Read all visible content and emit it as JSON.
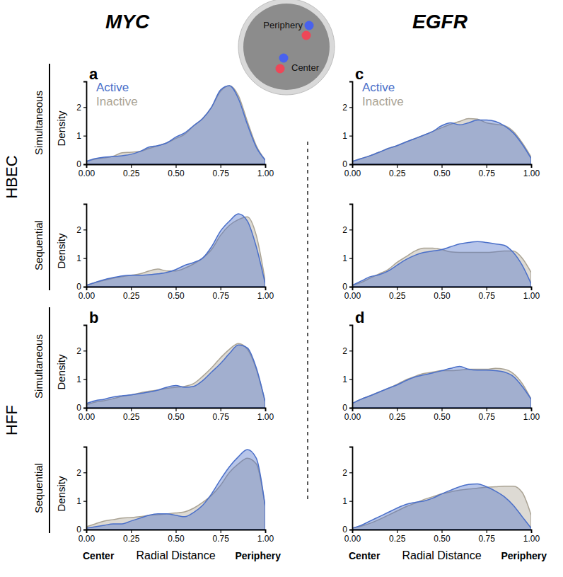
{
  "figure": {
    "columns": [
      "MYC",
      "EGFR"
    ],
    "groups": [
      "HBEC",
      "HFF"
    ],
    "diagram_labels": [
      "Periphery",
      "Center"
    ]
  },
  "chart_data": [
    {
      "type": "area",
      "panel": "a",
      "row_label": "Simultaneous",
      "ylabel": "Density",
      "legend": "upper left",
      "x": [
        0,
        0.05,
        0.1,
        0.15,
        0.2,
        0.25,
        0.3,
        0.35,
        0.4,
        0.45,
        0.5,
        0.55,
        0.6,
        0.65,
        0.7,
        0.75,
        0.8,
        0.85,
        0.9,
        0.95,
        1
      ],
      "xlim": [
        0,
        1
      ],
      "xticks": [
        {
          "value": 0,
          "label": "0.00"
        },
        0.25,
        {
          "value": 0.5,
          "label": "0.50"
        },
        0.75,
        {
          "value": 1,
          "label": "1.00"
        }
      ],
      "ylim": [
        0,
        2.9
      ],
      "yticks": [
        0,
        1,
        2
      ],
      "series": [
        {
          "name": "Active",
          "color": "#4a6fc9",
          "values": [
            0.1,
            0.2,
            0.25,
            0.27,
            0.3,
            0.35,
            0.45,
            0.6,
            0.65,
            0.75,
            0.95,
            1.1,
            1.35,
            1.6,
            2.0,
            2.6,
            2.75,
            2.3,
            1.4,
            0.6,
            0.15
          ]
        },
        {
          "name": "Inactive",
          "color": "#aaa394",
          "values": [
            0.1,
            0.18,
            0.22,
            0.28,
            0.4,
            0.42,
            0.45,
            0.55,
            0.65,
            0.75,
            0.9,
            1.05,
            1.35,
            1.6,
            2.0,
            2.55,
            2.75,
            2.4,
            1.5,
            0.65,
            0.15
          ]
        }
      ]
    },
    {
      "type": "area",
      "row_label": "Sequential",
      "ylabel": "Density",
      "x": [
        0,
        0.05,
        0.1,
        0.15,
        0.2,
        0.25,
        0.3,
        0.35,
        0.4,
        0.45,
        0.5,
        0.55,
        0.6,
        0.65,
        0.7,
        0.75,
        0.8,
        0.85,
        0.9,
        0.95,
        1
      ],
      "xlim": [
        0,
        1
      ],
      "xticks": [
        {
          "value": 0,
          "label": "0.00"
        },
        0.25,
        {
          "value": 0.5,
          "label": "0.50"
        },
        0.75,
        {
          "value": 1,
          "label": "1.00"
        }
      ],
      "ylim": [
        0,
        2.9
      ],
      "yticks": [
        0,
        1,
        2
      ],
      "series": [
        {
          "name": "Active",
          "color": "#4a6fc9",
          "values": [
            0.05,
            0.15,
            0.25,
            0.32,
            0.38,
            0.4,
            0.4,
            0.42,
            0.45,
            0.5,
            0.6,
            0.75,
            0.85,
            1.0,
            1.4,
            1.95,
            2.3,
            2.55,
            2.3,
            1.4,
            0.1
          ]
        },
        {
          "name": "Inactive",
          "color": "#aaa394",
          "values": [
            0.05,
            0.15,
            0.22,
            0.3,
            0.35,
            0.4,
            0.45,
            0.55,
            0.62,
            0.55,
            0.55,
            0.65,
            0.8,
            1.0,
            1.3,
            1.8,
            2.15,
            2.35,
            2.45,
            1.8,
            0.2
          ]
        }
      ]
    },
    {
      "type": "area",
      "panel": "b",
      "row_label": "Simultaneous",
      "ylabel": "Density",
      "x": [
        0,
        0.05,
        0.1,
        0.15,
        0.2,
        0.25,
        0.3,
        0.35,
        0.4,
        0.45,
        0.5,
        0.55,
        0.6,
        0.65,
        0.7,
        0.75,
        0.8,
        0.85,
        0.9,
        0.95,
        1
      ],
      "xlim": [
        0,
        1
      ],
      "xticks": [
        {
          "value": 0,
          "label": "0.00"
        },
        0.25,
        {
          "value": 0.5,
          "label": "0.50"
        },
        0.75,
        {
          "value": 1,
          "label": "1.00"
        }
      ],
      "ylim": [
        0,
        2.9
      ],
      "yticks": [
        0,
        1,
        2
      ],
      "series": [
        {
          "name": "Active",
          "color": "#4a6fc9",
          "values": [
            0.15,
            0.25,
            0.3,
            0.38,
            0.42,
            0.45,
            0.5,
            0.55,
            0.62,
            0.72,
            0.78,
            0.72,
            0.75,
            0.95,
            1.25,
            1.55,
            1.9,
            2.2,
            2.1,
            1.4,
            0.2
          ]
        },
        {
          "name": "Inactive",
          "color": "#aaa394",
          "values": [
            0.1,
            0.2,
            0.25,
            0.32,
            0.4,
            0.45,
            0.52,
            0.58,
            0.62,
            0.68,
            0.72,
            0.75,
            0.85,
            1.1,
            1.4,
            1.75,
            2.05,
            2.25,
            2.05,
            1.35,
            0.2
          ]
        }
      ]
    },
    {
      "type": "area",
      "row_label": "Sequential",
      "ylabel": "Density",
      "xlabel": "Radial Distance",
      "x_end_labels": [
        "Center",
        "Periphery"
      ],
      "x": [
        0,
        0.05,
        0.1,
        0.15,
        0.2,
        0.25,
        0.3,
        0.35,
        0.4,
        0.45,
        0.5,
        0.55,
        0.6,
        0.65,
        0.7,
        0.75,
        0.8,
        0.85,
        0.9,
        0.95,
        1
      ],
      "xlim": [
        0,
        1
      ],
      "xticks": [
        {
          "value": 0,
          "label": "0.00"
        },
        0.25,
        {
          "value": 0.5,
          "label": "0.50"
        },
        0.75,
        {
          "value": 1,
          "label": "1.00"
        }
      ],
      "ylim": [
        0,
        2.9
      ],
      "yticks": [
        0,
        1,
        2
      ],
      "series": [
        {
          "name": "Active",
          "color": "#4a6fc9",
          "values": [
            0.05,
            0.1,
            0.15,
            0.2,
            0.2,
            0.3,
            0.4,
            0.5,
            0.55,
            0.55,
            0.5,
            0.45,
            0.6,
            0.85,
            1.25,
            1.75,
            2.2,
            2.55,
            2.8,
            2.5,
            0.8
          ]
        },
        {
          "name": "Inactive",
          "color": "#aaa394",
          "values": [
            0.1,
            0.2,
            0.3,
            0.35,
            0.4,
            0.42,
            0.45,
            0.5,
            0.52,
            0.55,
            0.58,
            0.62,
            0.75,
            0.95,
            1.2,
            1.55,
            2.0,
            2.3,
            2.5,
            2.3,
            0.8
          ]
        }
      ]
    },
    {
      "type": "area",
      "panel": "c",
      "legend": "upper left",
      "x": [
        0,
        0.05,
        0.1,
        0.15,
        0.2,
        0.25,
        0.3,
        0.35,
        0.4,
        0.45,
        0.5,
        0.55,
        0.6,
        0.65,
        0.7,
        0.75,
        0.8,
        0.85,
        0.9,
        0.95,
        1
      ],
      "xlim": [
        0,
        1
      ],
      "xticks": [
        {
          "value": 0,
          "label": "0.00"
        },
        0.25,
        {
          "value": 0.5,
          "label": "0.50"
        },
        0.75,
        {
          "value": 1,
          "label": "1.00"
        }
      ],
      "ylim": [
        0,
        2.9
      ],
      "yticks": [
        0,
        1,
        2
      ],
      "series": [
        {
          "name": "Active",
          "color": "#4a6fc9",
          "values": [
            0.1,
            0.2,
            0.3,
            0.42,
            0.55,
            0.65,
            0.78,
            0.9,
            1.02,
            1.15,
            1.35,
            1.45,
            1.38,
            1.45,
            1.55,
            1.55,
            1.5,
            1.35,
            1.1,
            0.7,
            0.2
          ]
        },
        {
          "name": "Inactive",
          "color": "#aaa394",
          "values": [
            0.1,
            0.2,
            0.3,
            0.42,
            0.55,
            0.65,
            0.78,
            0.9,
            1.02,
            1.15,
            1.28,
            1.4,
            1.5,
            1.6,
            1.58,
            1.45,
            1.4,
            1.35,
            1.15,
            0.75,
            0.25
          ]
        }
      ]
    },
    {
      "type": "area",
      "x": [
        0,
        0.05,
        0.1,
        0.15,
        0.2,
        0.25,
        0.3,
        0.35,
        0.4,
        0.45,
        0.5,
        0.55,
        0.6,
        0.65,
        0.7,
        0.75,
        0.8,
        0.85,
        0.9,
        0.95,
        1
      ],
      "xlim": [
        0,
        1
      ],
      "xticks": [
        {
          "value": 0,
          "label": "0.00"
        },
        0.25,
        {
          "value": 0.5,
          "label": "0.50"
        },
        0.75,
        {
          "value": 1,
          "label": "1.00"
        }
      ],
      "ylim": [
        0,
        2.9
      ],
      "yticks": [
        0,
        1,
        2
      ],
      "series": [
        {
          "name": "Active",
          "color": "#4a6fc9",
          "values": [
            0.05,
            0.2,
            0.35,
            0.42,
            0.55,
            0.75,
            0.95,
            1.1,
            1.2,
            1.25,
            1.3,
            1.4,
            1.5,
            1.55,
            1.58,
            1.55,
            1.5,
            1.45,
            1.2,
            0.75,
            0.1
          ]
        },
        {
          "name": "Inactive",
          "color": "#aaa394",
          "values": [
            0.05,
            0.15,
            0.3,
            0.45,
            0.6,
            0.85,
            1.05,
            1.25,
            1.35,
            1.35,
            1.3,
            1.22,
            1.2,
            1.2,
            1.2,
            1.2,
            1.22,
            1.25,
            1.25,
            1.0,
            0.5
          ]
        }
      ]
    },
    {
      "type": "area",
      "panel": "d",
      "x": [
        0,
        0.05,
        0.1,
        0.15,
        0.2,
        0.25,
        0.3,
        0.35,
        0.4,
        0.45,
        0.5,
        0.55,
        0.6,
        0.65,
        0.7,
        0.75,
        0.8,
        0.85,
        0.9,
        0.95,
        1
      ],
      "xlim": [
        0,
        1
      ],
      "xticks": [
        {
          "value": 0,
          "label": "0.00"
        },
        0.25,
        {
          "value": 0.5,
          "label": "0.50"
        },
        0.75,
        {
          "value": 1,
          "label": "1.00"
        }
      ],
      "ylim": [
        0,
        2.9
      ],
      "yticks": [
        0,
        1,
        2
      ],
      "series": [
        {
          "name": "Active",
          "color": "#4a6fc9",
          "values": [
            0.15,
            0.3,
            0.42,
            0.55,
            0.68,
            0.8,
            0.95,
            1.08,
            1.15,
            1.22,
            1.3,
            1.38,
            1.45,
            1.35,
            1.32,
            1.32,
            1.3,
            1.25,
            1.1,
            0.75,
            0.3
          ]
        },
        {
          "name": "Inactive",
          "color": "#aaa394",
          "values": [
            0.15,
            0.3,
            0.42,
            0.55,
            0.68,
            0.82,
            0.98,
            1.1,
            1.2,
            1.25,
            1.3,
            1.3,
            1.32,
            1.35,
            1.35,
            1.35,
            1.38,
            1.35,
            1.2,
            0.85,
            0.3
          ]
        }
      ]
    },
    {
      "type": "area",
      "xlabel": "Radial Distance",
      "x_end_labels": [
        "Center",
        "Periphery"
      ],
      "x": [
        0,
        0.05,
        0.1,
        0.15,
        0.2,
        0.25,
        0.3,
        0.35,
        0.4,
        0.45,
        0.5,
        0.55,
        0.6,
        0.65,
        0.7,
        0.75,
        0.8,
        0.85,
        0.9,
        0.95,
        1
      ],
      "xlim": [
        0,
        1
      ],
      "xticks": [
        {
          "value": 0,
          "label": "0.00"
        },
        0.25,
        {
          "value": 0.5,
          "label": "0.50"
        },
        0.75,
        {
          "value": 1,
          "label": "1.00"
        }
      ],
      "ylim": [
        0,
        2.9
      ],
      "yticks": [
        0,
        1,
        2
      ],
      "series": [
        {
          "name": "Active",
          "color": "#4a6fc9",
          "values": [
            0.05,
            0.15,
            0.3,
            0.45,
            0.6,
            0.75,
            0.88,
            0.95,
            1.0,
            1.1,
            1.25,
            1.38,
            1.5,
            1.58,
            1.6,
            1.5,
            1.35,
            1.15,
            0.85,
            0.45,
            0.05
          ]
        },
        {
          "name": "Inactive",
          "color": "#aaa394",
          "values": [
            0.05,
            0.12,
            0.22,
            0.35,
            0.5,
            0.65,
            0.8,
            0.92,
            1.05,
            1.15,
            1.25,
            1.32,
            1.38,
            1.42,
            1.45,
            1.48,
            1.5,
            1.52,
            1.52,
            1.3,
            0.5
          ]
        }
      ]
    }
  ]
}
